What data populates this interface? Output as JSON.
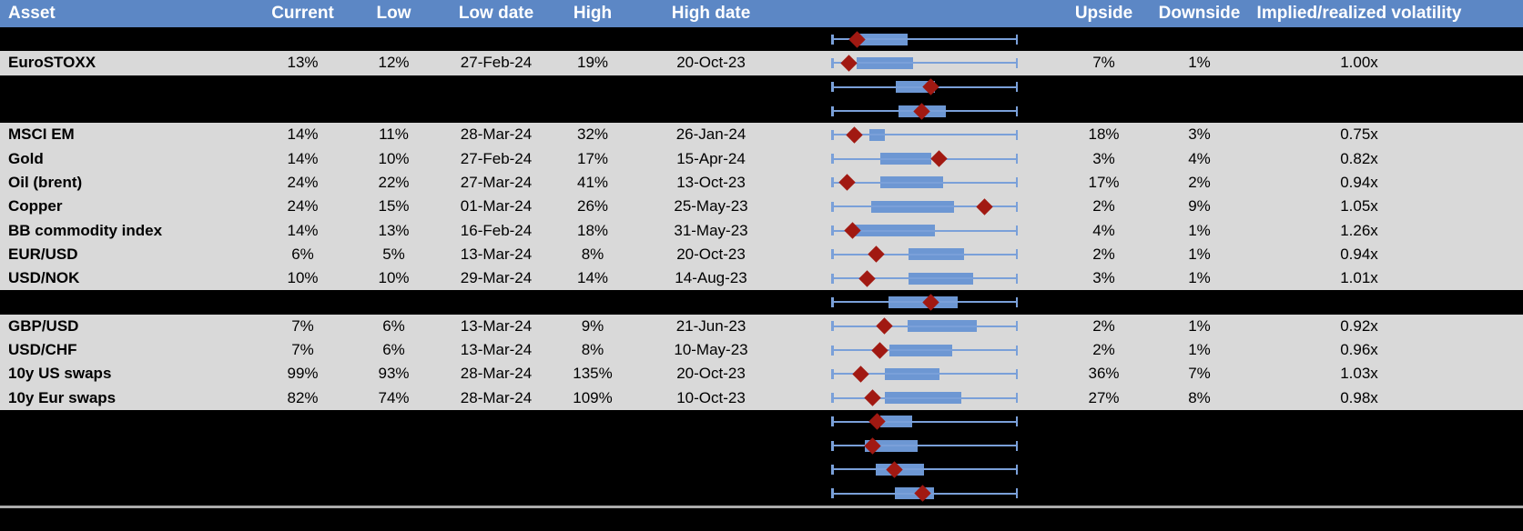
{
  "header": {
    "asset": "Asset",
    "current": "Current",
    "low": "Low",
    "low_date": "Low date",
    "high": "High",
    "high_date": "High date",
    "upside": "Upside",
    "downside": "Downside",
    "vol": "Implied/realized volatility"
  },
  "colors": {
    "header_bg": "#5C87C5",
    "header_text": "#FFFFFF",
    "row_bg": "#D9D9D9",
    "hidden_row_bg": "#000000",
    "body_text": "#000000",
    "whisker_blue": "#7AA0D9",
    "box_blue": "#6D97D3",
    "marker_red": "#A11912",
    "divider_gray": "#ABABAB"
  },
  "plot_geometry_note": "box_lo/box_hi/marker are fractions 0-1 of the whisker span (whiskers always full width)",
  "rows": [
    {
      "type": "hidden",
      "asset": "",
      "current": "",
      "low": "",
      "low_date": "",
      "high": "",
      "high_date": "",
      "upside": "",
      "downside": "",
      "vol": "",
      "plot": {
        "box_lo": 0.141,
        "box_hi": 0.41,
        "marker": 0.137
      }
    },
    {
      "type": "data",
      "asset": "EuroSTOXX",
      "current": "13%",
      "low": "12%",
      "low_date": "27-Feb-24",
      "high": "19%",
      "high_date": "20-Oct-23",
      "upside": "7%",
      "downside": "1%",
      "vol": "1.00x",
      "plot": {
        "box_lo": 0.137,
        "box_hi": 0.439,
        "marker": 0.093
      }
    },
    {
      "type": "hidden",
      "asset": "",
      "current": "",
      "low": "",
      "low_date": "",
      "high": "",
      "high_date": "",
      "upside": "",
      "downside": "",
      "vol": "",
      "plot": {
        "box_lo": 0.346,
        "box_hi": 0.556,
        "marker": 0.532
      }
    },
    {
      "type": "hidden",
      "asset": "",
      "current": "",
      "low": "",
      "low_date": "",
      "high": "",
      "high_date": "",
      "upside": "",
      "downside": "",
      "vol": "",
      "plot": {
        "box_lo": 0.361,
        "box_hi": 0.615,
        "marker": 0.483
      }
    },
    {
      "type": "data",
      "asset": "MSCI EM",
      "current": "14%",
      "low": "11%",
      "low_date": "28-Mar-24",
      "high": "32%",
      "high_date": "26-Jan-24",
      "upside": "18%",
      "downside": "3%",
      "vol": "0.75x",
      "plot": {
        "box_lo": 0.205,
        "box_hi": 0.288,
        "marker": 0.122
      }
    },
    {
      "type": "data",
      "asset": "Gold",
      "current": "14%",
      "low": "10%",
      "low_date": "27-Feb-24",
      "high": "17%",
      "high_date": "15-Apr-24",
      "upside": "3%",
      "downside": "4%",
      "vol": "0.82x",
      "plot": {
        "box_lo": 0.263,
        "box_hi": 0.537,
        "marker": 0.576
      }
    },
    {
      "type": "data",
      "asset": "Oil (brent)",
      "current": "24%",
      "low": "22%",
      "low_date": "27-Mar-24",
      "high": "41%",
      "high_date": "13-Oct-23",
      "upside": "17%",
      "downside": "2%",
      "vol": "0.94x",
      "plot": {
        "box_lo": 0.263,
        "box_hi": 0.6,
        "marker": 0.083
      }
    },
    {
      "type": "data",
      "asset": "Copper",
      "current": "24%",
      "low": "15%",
      "low_date": "01-Mar-24",
      "high": "26%",
      "high_date": "25-May-23",
      "upside": "2%",
      "downside": "9%",
      "vol": "1.05x",
      "plot": {
        "box_lo": 0.215,
        "box_hi": 0.659,
        "marker": 0.824
      }
    },
    {
      "type": "data",
      "asset": "BB commodity index",
      "current": "14%",
      "low": "13%",
      "low_date": "16-Feb-24",
      "high": "18%",
      "high_date": "31-May-23",
      "upside": "4%",
      "downside": "1%",
      "vol": "1.26x",
      "plot": {
        "box_lo": 0.127,
        "box_hi": 0.556,
        "marker": 0.112
      }
    },
    {
      "type": "data",
      "asset": "EUR/USD",
      "current": "6%",
      "low": "5%",
      "low_date": "13-Mar-24",
      "high": "8%",
      "high_date": "20-Oct-23",
      "upside": "2%",
      "downside": "1%",
      "vol": "0.94x",
      "plot": {
        "box_lo": 0.415,
        "box_hi": 0.712,
        "marker": 0.239
      }
    },
    {
      "type": "data",
      "asset": "USD/NOK",
      "current": "10%",
      "low": "10%",
      "low_date": "29-Mar-24",
      "high": "14%",
      "high_date": "14-Aug-23",
      "upside": "3%",
      "downside": "1%",
      "vol": "1.01x",
      "plot": {
        "box_lo": 0.415,
        "box_hi": 0.761,
        "marker": 0.19
      }
    },
    {
      "type": "hidden",
      "asset": "",
      "current": "",
      "low": "",
      "low_date": "",
      "high": "",
      "high_date": "",
      "upside": "",
      "downside": "",
      "vol": "",
      "plot": {
        "box_lo": 0.307,
        "box_hi": 0.678,
        "marker": 0.532
      }
    },
    {
      "type": "data",
      "asset": "GBP/USD",
      "current": "7%",
      "low": "6%",
      "low_date": "13-Mar-24",
      "high": "9%",
      "high_date": "21-Jun-23",
      "upside": "2%",
      "downside": "1%",
      "vol": "0.92x",
      "plot": {
        "box_lo": 0.41,
        "box_hi": 0.78,
        "marker": 0.283
      }
    },
    {
      "type": "data",
      "asset": "USD/CHF",
      "current": "7%",
      "low": "6%",
      "low_date": "13-Mar-24",
      "high": "8%",
      "high_date": "10-May-23",
      "upside": "2%",
      "downside": "1%",
      "vol": "0.96x",
      "plot": {
        "box_lo": 0.312,
        "box_hi": 0.649,
        "marker": 0.259
      }
    },
    {
      "type": "data",
      "asset": "10y US swaps",
      "current": "99%",
      "low": "93%",
      "low_date": "28-Mar-24",
      "high": "135%",
      "high_date": "20-Oct-23",
      "upside": "36%",
      "downside": "7%",
      "vol": "1.03x",
      "plot": {
        "box_lo": 0.288,
        "box_hi": 0.58,
        "marker": 0.156
      }
    },
    {
      "type": "data",
      "asset": "10y Eur swaps",
      "current": "82%",
      "low": "74%",
      "low_date": "28-Mar-24",
      "high": "109%",
      "high_date": "10-Oct-23",
      "upside": "27%",
      "downside": "8%",
      "vol": "0.98x",
      "plot": {
        "box_lo": 0.288,
        "box_hi": 0.698,
        "marker": 0.224
      }
    },
    {
      "type": "hidden",
      "asset": "",
      "current": "",
      "low": "",
      "low_date": "",
      "high": "",
      "high_date": "",
      "upside": "",
      "downside": "",
      "vol": "",
      "plot": {
        "box_lo": 0.263,
        "box_hi": 0.434,
        "marker": 0.244
      }
    },
    {
      "type": "hidden",
      "asset": "",
      "current": "",
      "low": "",
      "low_date": "",
      "high": "",
      "high_date": "",
      "upside": "",
      "downside": "",
      "vol": "",
      "plot": {
        "box_lo": 0.18,
        "box_hi": 0.463,
        "marker": 0.224
      }
    },
    {
      "type": "hidden",
      "asset": "",
      "current": "",
      "low": "",
      "low_date": "",
      "high": "",
      "high_date": "",
      "upside": "",
      "downside": "",
      "vol": "",
      "plot": {
        "box_lo": 0.239,
        "box_hi": 0.498,
        "marker": 0.341
      }
    },
    {
      "type": "hidden",
      "asset": "",
      "current": "",
      "low": "",
      "low_date": "",
      "high": "",
      "high_date": "",
      "upside": "",
      "downside": "",
      "vol": "",
      "plot": {
        "box_lo": 0.341,
        "box_hi": 0.551,
        "marker": 0.488
      }
    }
  ]
}
